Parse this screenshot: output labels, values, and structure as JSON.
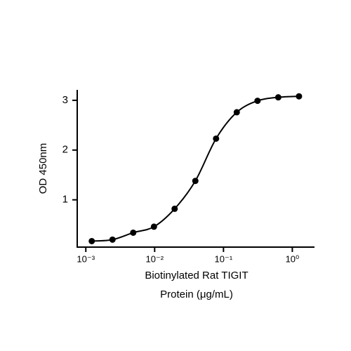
{
  "chart_data": {
    "type": "scatter",
    "x": [
      0.00122,
      0.00244,
      0.00488,
      0.00977,
      0.0195,
      0.039,
      0.078,
      0.156,
      0.3125,
      0.625,
      1.25
    ],
    "series": [
      {
        "color": "#000000",
        "values": [
          0.17,
          0.2,
          0.34,
          0.46,
          0.82,
          1.38,
          2.23,
          2.76,
          2.99,
          3.06,
          3.08
        ]
      }
    ],
    "xlog": true,
    "xlim": [
      0.00075,
      2.1
    ],
    "xticks": [
      {
        "value": 0.001,
        "label": "10⁻³"
      },
      {
        "value": 0.01,
        "label": "10⁻²"
      },
      {
        "value": 0.1,
        "label": "10⁻¹"
      },
      {
        "value": 1,
        "label": "10⁰"
      }
    ],
    "ylim": [
      0.05,
      3.21
    ],
    "yticks": [
      1,
      2,
      3
    ],
    "xlabel": [
      "Biotinylated Rat TIGIT",
      "Protein (μg/mL)"
    ],
    "ylabel": "OD 450nm"
  }
}
